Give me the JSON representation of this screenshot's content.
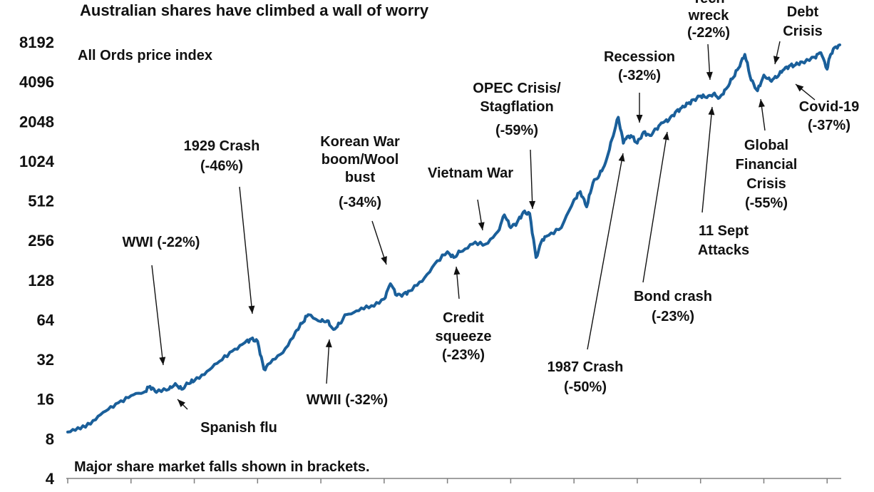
{
  "chart_data": {
    "type": "line",
    "title": "Australian shares have climbed a wall of worry",
    "subtitle": "All Ords price index",
    "note": "Major share market falls shown in brackets.",
    "y_scale": "log2",
    "ylim": [
      4,
      11000
    ],
    "yticks": [
      "4",
      "8",
      "16",
      "32",
      "64",
      "128",
      "256",
      "512",
      "1024",
      "2048",
      "4096",
      "8192"
    ],
    "xlim": [
      1900,
      2022
    ],
    "grid": false,
    "legend": "none",
    "colors": {
      "line": "#1a5f9a",
      "text": "#111111",
      "axis": "#808080"
    },
    "series": [
      {
        "x": [
          1900,
          1902,
          1904,
          1906,
          1908,
          1910,
          1912,
          1913,
          1914,
          1916,
          1917,
          1918,
          1919,
          1920,
          1922,
          1924,
          1926,
          1928,
          1929,
          1930,
          1931,
          1932,
          1934,
          1936,
          1937,
          1938,
          1940,
          1941,
          1942,
          1943,
          1944,
          1946,
          1948,
          1950,
          1951,
          1952,
          1953,
          1954,
          1956,
          1958,
          1960,
          1961,
          1962,
          1964,
          1966,
          1968,
          1969,
          1970,
          1971,
          1972,
          1973,
          1974,
          1975,
          1976,
          1978,
          1980,
          1981,
          1982,
          1983,
          1984,
          1985,
          1986,
          1987,
          1987.8,
          1988,
          1989,
          1990,
          1991,
          1992,
          1993,
          1994,
          1995,
          1996,
          1997,
          1998,
          1999,
          2000,
          2001,
          2002,
          2003,
          2004,
          2005,
          2006,
          2007,
          2008,
          2009,
          2010,
          2011,
          2012,
          2013,
          2014,
          2015,
          2016,
          2018,
          2019,
          2020,
          2020.5,
          2021,
          2022
        ],
        "y": [
          9,
          9.5,
          11,
          13,
          15,
          17,
          18,
          20,
          18,
          19,
          21,
          19,
          21,
          22,
          26,
          31,
          37,
          43,
          46,
          44,
          27,
          30,
          36,
          52,
          60,
          70,
          62,
          63,
          54,
          60,
          70,
          75,
          82,
          92,
          120,
          98,
          100,
          106,
          125,
          170,
          210,
          190,
          210,
          240,
          240,
          300,
          400,
          320,
          350,
          420,
          410,
          190,
          260,
          280,
          320,
          520,
          600,
          460,
          700,
          800,
          1000,
          1500,
          2200,
          1400,
          1500,
          1600,
          1400,
          1700,
          1600,
          1800,
          2000,
          2100,
          2400,
          2600,
          2800,
          3000,
          3200,
          3100,
          3300,
          3100,
          3600,
          4300,
          5200,
          6600,
          4200,
          3500,
          4600,
          4200,
          4400,
          5000,
          5400,
          5500,
          5800,
          6300,
          6800,
          5100,
          6500,
          7300,
          7800
        ]
      }
    ],
    "annotations": [
      {
        "lines": [
          "WWI (-22%)"
        ],
        "x": 1915
      },
      {
        "lines": [
          "Spanish flu"
        ],
        "x": 1918
      },
      {
        "lines": [
          "1929 Crash",
          "(-46%)"
        ],
        "x": 1930
      },
      {
        "lines": [
          "WWII (-32%)"
        ],
        "x": 1942
      },
      {
        "lines": [
          "Korean War",
          "boom/Wool",
          "bust"
        ],
        "x": 1951
      },
      {
        "lines": [
          "(-34%)"
        ],
        "x": 1951
      },
      {
        "lines": [
          "Credit",
          "squeeze",
          "(-23%)"
        ],
        "x": 1961
      },
      {
        "lines": [
          "Vietnam War"
        ],
        "x": 1970
      },
      {
        "lines": [
          "OPEC Crisis/",
          "Stagflation"
        ],
        "x": 1974
      },
      {
        "lines": [
          "(-59%)"
        ],
        "x": 1974
      },
      {
        "lines": [
          "1987 Crash",
          "(-50%)"
        ],
        "x": 1987
      },
      {
        "lines": [
          "Recession",
          "(-32%)"
        ],
        "x": 1990
      },
      {
        "lines": [
          "Bond crash",
          "(-23%)"
        ],
        "x": 1994
      },
      {
        "lines": [
          "Tech",
          "wreck",
          "(-22%)"
        ],
        "x": 2002
      },
      {
        "lines": [
          "11 Sept",
          "Attacks"
        ],
        "x": 2001
      },
      {
        "lines": [
          "Global",
          "Financial",
          "Crisis",
          "(-55%)"
        ],
        "x": 2008
      },
      {
        "lines": [
          "Debt",
          "Crisis"
        ],
        "x": 2011
      },
      {
        "lines": [
          "Covid-19",
          "(-37%)"
        ],
        "x": 2020
      }
    ]
  }
}
